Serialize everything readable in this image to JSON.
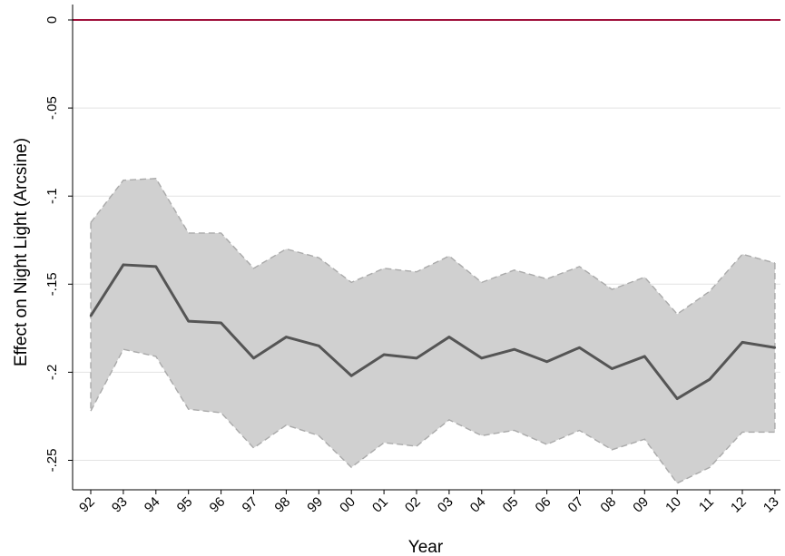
{
  "chart_data": {
    "type": "line",
    "xlabel": "Year",
    "ylabel": "Effect on Night Light (Arcsine)",
    "x": [
      "92",
      "93",
      "94",
      "95",
      "96",
      "97",
      "98",
      "99",
      "00",
      "01",
      "02",
      "03",
      "04",
      "05",
      "06",
      "07",
      "08",
      "09",
      "10",
      "11",
      "12",
      "13"
    ],
    "ylim": [
      -0.27,
      0.003
    ],
    "yticks": [
      0,
      -0.05,
      -0.1,
      -0.15,
      -0.2,
      -0.25
    ],
    "ytick_labels": [
      "0",
      "-.05",
      "-.1",
      "-.15",
      "-.2",
      "-.25"
    ],
    "grid": true,
    "reference_line": {
      "y": 0,
      "color": "#a0123c"
    },
    "series": [
      {
        "values": [
          -0.168,
          -0.139,
          -0.14,
          -0.171,
          -0.172,
          -0.192,
          -0.18,
          -0.185,
          -0.202,
          -0.19,
          -0.192,
          -0.18,
          -0.192,
          -0.187,
          -0.194,
          -0.186,
          -0.198,
          -0.191,
          -0.215,
          -0.204,
          -0.183,
          -0.186
        ],
        "color": "#555555"
      }
    ],
    "confidence_band": {
      "upper": [
        -0.115,
        -0.091,
        -0.09,
        -0.121,
        -0.121,
        -0.141,
        -0.13,
        -0.135,
        -0.149,
        -0.141,
        -0.143,
        -0.134,
        -0.149,
        -0.142,
        -0.147,
        -0.14,
        -0.153,
        -0.146,
        -0.167,
        -0.154,
        -0.133,
        -0.138
      ],
      "lower": [
        -0.222,
        -0.187,
        -0.191,
        -0.221,
        -0.223,
        -0.243,
        -0.23,
        -0.236,
        -0.254,
        -0.24,
        -0.242,
        -0.227,
        -0.236,
        -0.233,
        -0.241,
        -0.233,
        -0.244,
        -0.238,
        -0.263,
        -0.254,
        -0.234,
        -0.234
      ],
      "fill": "#d0d0d0",
      "edge": "#aaaaaa"
    }
  }
}
